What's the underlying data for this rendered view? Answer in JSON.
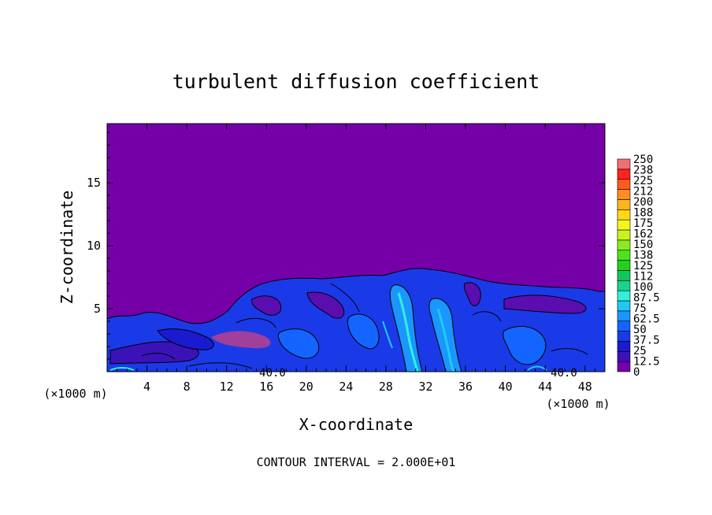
{
  "chart_data": {
    "type": "heatmap",
    "title": "turbulent diffusion coefficient",
    "xlabel": "X-coordinate",
    "ylabel": "Z-coordinate",
    "x_unit": "(×1000 m)",
    "z_unit": "(×1000 m)",
    "xlim": [
      0,
      50
    ],
    "ylim": [
      0,
      19.7
    ],
    "x_ticks": [
      4,
      8,
      12,
      16,
      20,
      24,
      28,
      32,
      36,
      40,
      44,
      48
    ],
    "y_ticks": [
      5,
      10,
      15
    ],
    "colorbar": {
      "labels": [
        "0",
        "12.5",
        "25",
        "37.5",
        "50",
        "62.5",
        "75",
        "87.5",
        "100",
        "112",
        "125",
        "138",
        "150",
        "162",
        "175",
        "188",
        "200",
        "212",
        "225",
        "238",
        "250"
      ],
      "colors": [
        "#7600a8",
        "#3a12b8",
        "#1a1ad0",
        "#1a3ae8",
        "#1464ff",
        "#1a96ff",
        "#22c8f0",
        "#30f0dc",
        "#18d48c",
        "#10c85a",
        "#1ed21e",
        "#50e01e",
        "#8aec1e",
        "#c8f41e",
        "#f5f51e",
        "#ffd81e",
        "#ffb41e",
        "#ff8c1e",
        "#ff5a1e",
        "#ff2222",
        "#f07070"
      ]
    },
    "contour_labels": [
      "40.0",
      "40.0"
    ],
    "contour_interval": "CONTOUR INTERVAL = 2.000E+01",
    "field_note": "values 0 above about z=8 (×1000 m); mostly 12.5–50 in the turbulent layer below, peaks up to about 75 near the surface"
  }
}
